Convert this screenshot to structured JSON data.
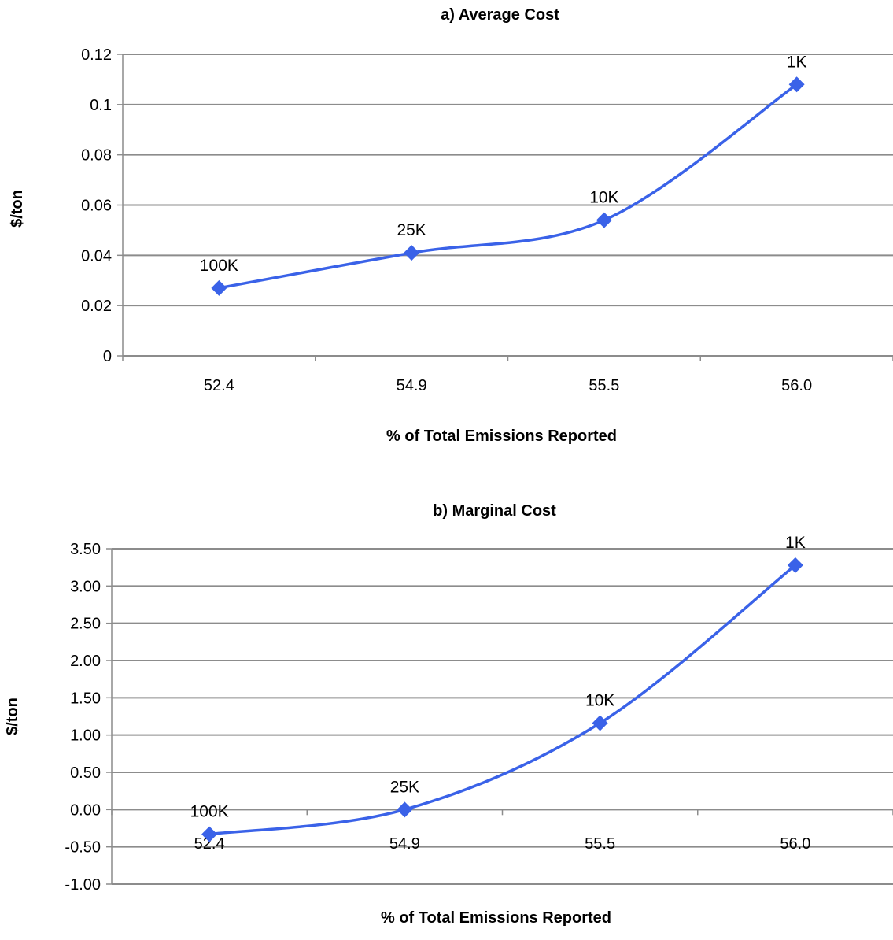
{
  "chart_data": [
    {
      "type": "line",
      "title": "a) Average Cost",
      "xlabel": "% of Total Emissions Reported",
      "ylabel": "$/ton",
      "categories": [
        "52.4",
        "54.9",
        "55.5",
        "56.0"
      ],
      "values": [
        0.027,
        0.041,
        0.054,
        0.108
      ],
      "point_labels": [
        "100K",
        "25K",
        "10K",
        "1K"
      ],
      "ylim": [
        0,
        0.12
      ],
      "yticks": [
        "0",
        "0.02",
        "0.04",
        "0.06",
        "0.08",
        "0.1",
        "0.12"
      ],
      "grid": true,
      "smooth": true,
      "color": "#3a62e8"
    },
    {
      "type": "line",
      "title": "b) Marginal Cost",
      "xlabel": "% of Total Emissions Reported",
      "ylabel": "$/ton",
      "categories": [
        "52.4",
        "54.9",
        "55.5",
        "56.0"
      ],
      "values": [
        -0.33,
        0.0,
        1.16,
        3.28
      ],
      "point_labels": [
        "100K",
        "25K",
        "10K",
        "1K"
      ],
      "ylim": [
        -1.0,
        3.5
      ],
      "yticks": [
        "-1.00",
        "-0.50",
        "0.00",
        "0.50",
        "1.00",
        "1.50",
        "2.00",
        "2.50",
        "3.00",
        "3.50"
      ],
      "grid": true,
      "smooth": true,
      "color": "#3a62e8"
    }
  ]
}
